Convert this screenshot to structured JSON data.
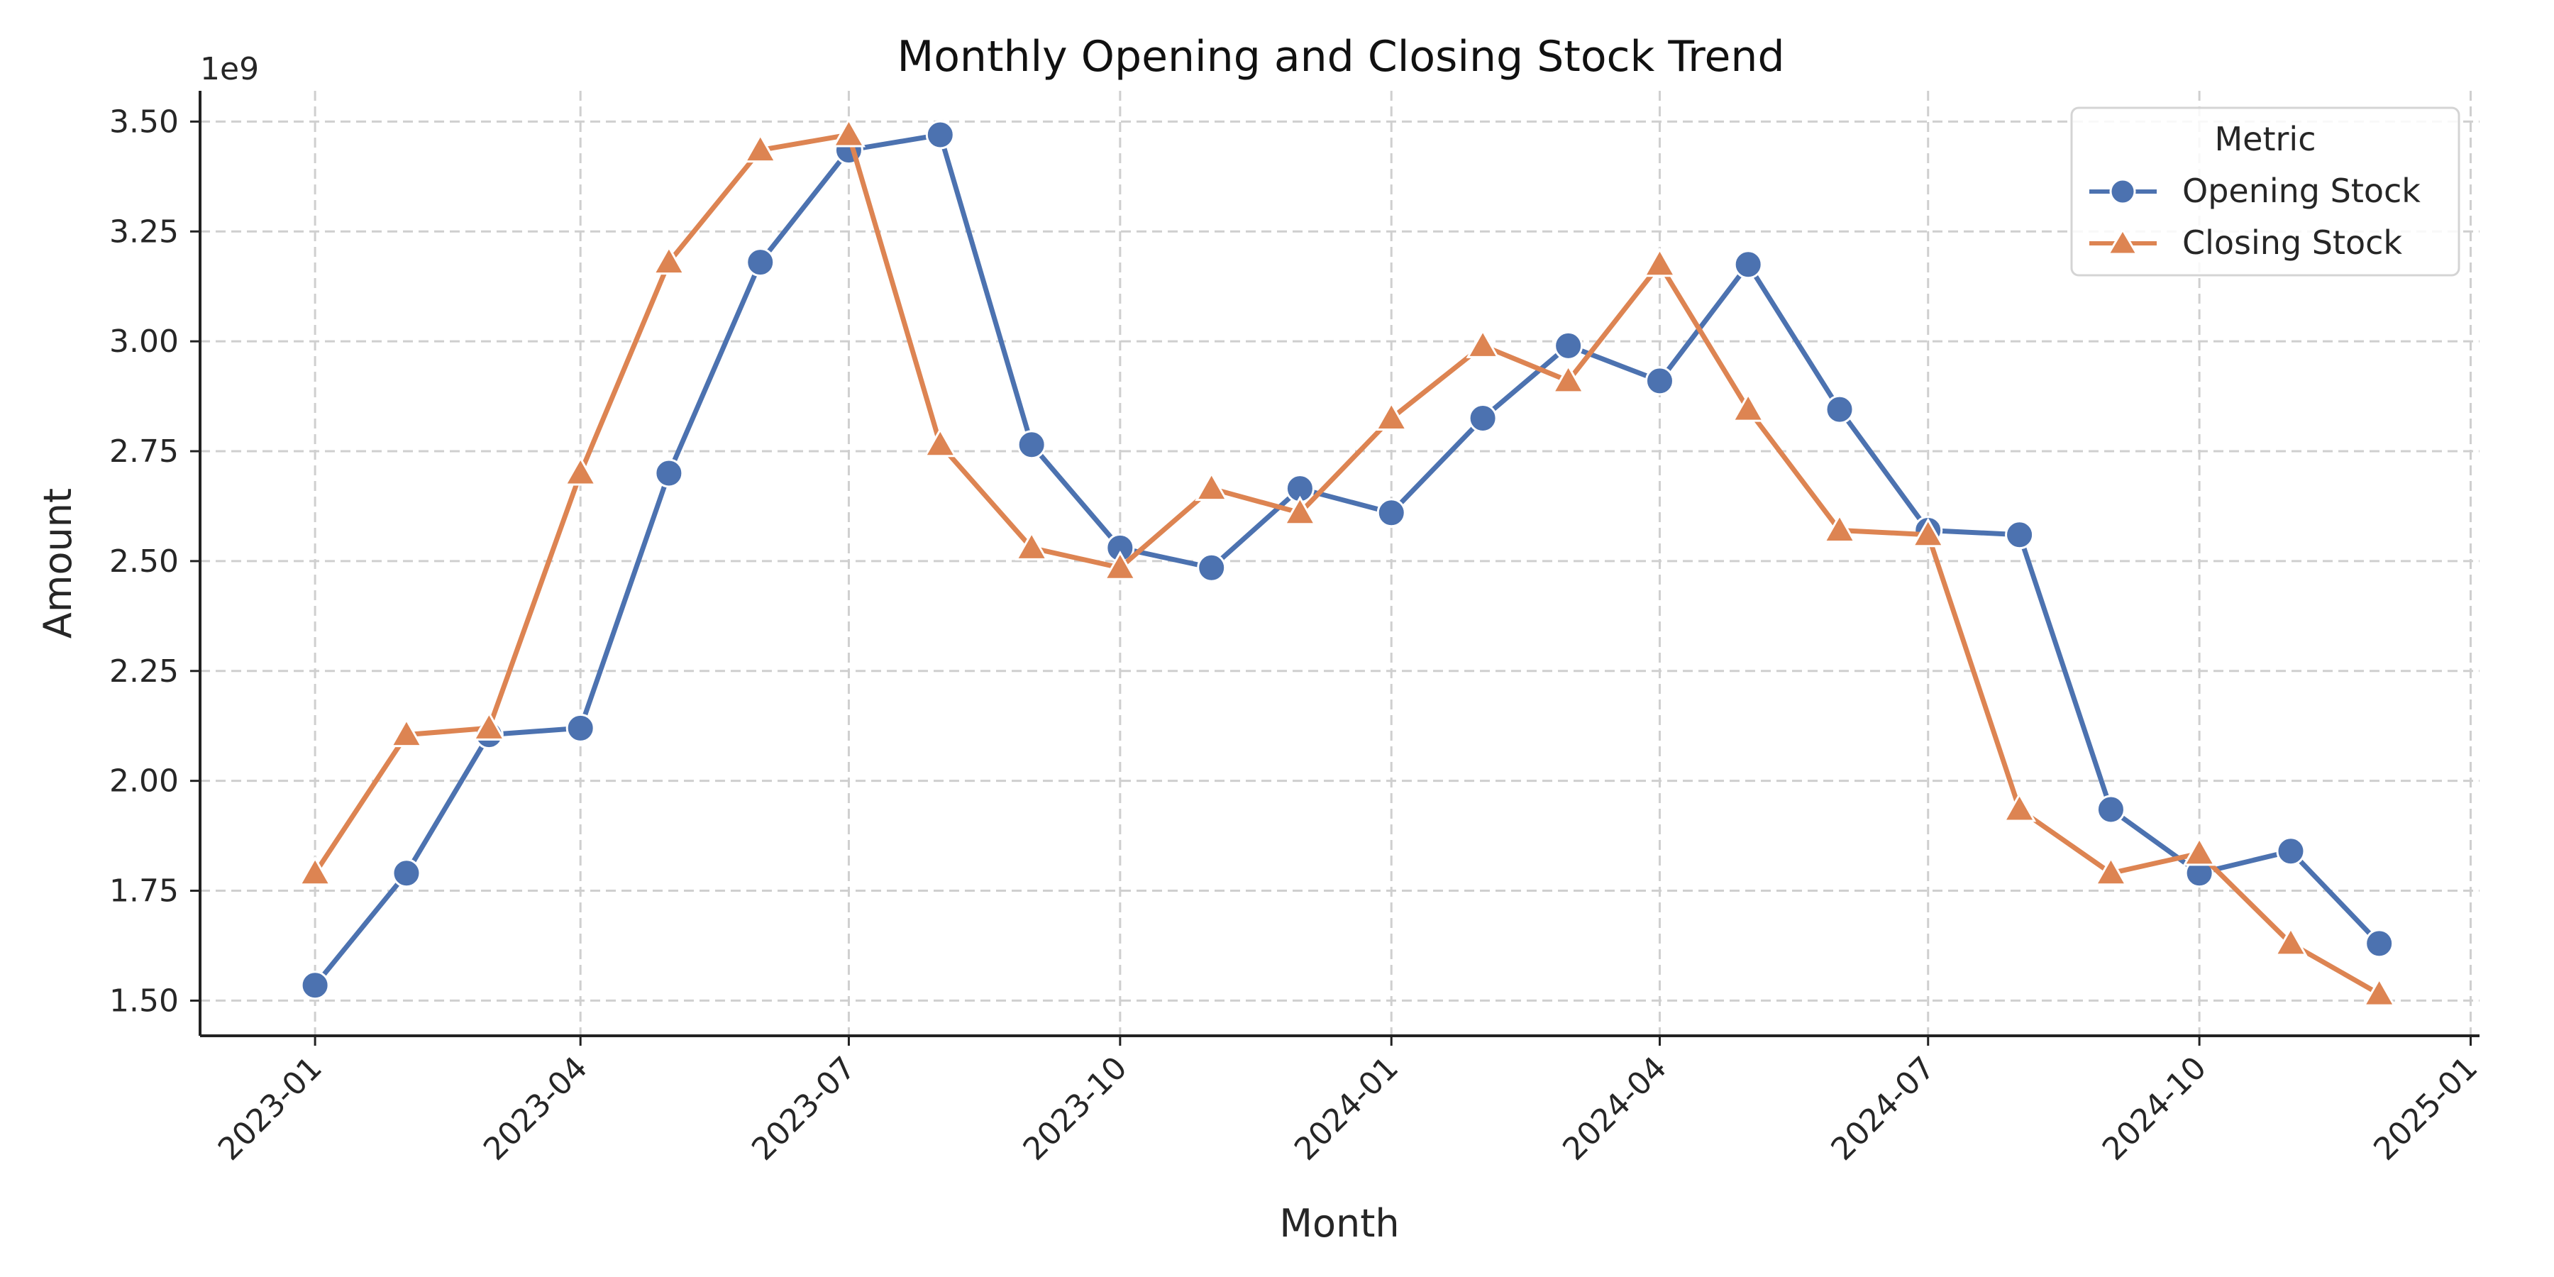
{
  "chart_data": {
    "type": "line",
    "title": "Monthly Opening and Closing Stock Trend",
    "xlabel": "Month",
    "ylabel": "Amount",
    "y_offset_label": "1e9",
    "x_ticks": [
      "2023-01",
      "2023-04",
      "2023-07",
      "2023-10",
      "2024-01",
      "2024-04",
      "2024-07",
      "2024-10",
      "2025-01"
    ],
    "y_ticks": [
      "1.50",
      "1.75",
      "2.00",
      "2.25",
      "2.50",
      "2.75",
      "3.00",
      "3.25",
      "3.50"
    ],
    "y_tick_values": [
      1.5,
      1.75,
      2.0,
      2.25,
      2.5,
      2.75,
      3.0,
      3.25,
      3.5
    ],
    "ylim": [
      1.42,
      3.57
    ],
    "xlim": [
      "2022-11-23",
      "2025-01-04"
    ],
    "grid": true,
    "legend_title": "Metric",
    "legend_position": "top-right",
    "x": [
      "2023-01",
      "2023-02",
      "2023-03",
      "2023-04",
      "2023-05",
      "2023-06",
      "2023-07",
      "2023-08",
      "2023-09",
      "2023-10",
      "2023-11",
      "2023-12",
      "2024-01",
      "2024-02",
      "2024-03",
      "2024-04",
      "2024-05",
      "2024-06",
      "2024-07",
      "2024-08",
      "2024-09",
      "2024-10",
      "2024-11",
      "2024-12"
    ],
    "series": [
      {
        "name": "Opening Stock",
        "color": "#4c72b0",
        "marker": "circle",
        "values": [
          1.535,
          1.79,
          2.105,
          2.12,
          2.7,
          3.18,
          3.435,
          3.47,
          2.765,
          2.53,
          2.485,
          2.665,
          2.61,
          2.825,
          2.99,
          2.91,
          3.175,
          2.845,
          2.57,
          2.56,
          1.935,
          1.79,
          1.84,
          1.63
        ]
      },
      {
        "name": "Closing Stock",
        "color": "#dd8452",
        "marker": "triangle",
        "values": [
          1.79,
          2.105,
          2.12,
          2.7,
          3.18,
          3.435,
          3.47,
          2.765,
          2.53,
          2.485,
          2.665,
          2.61,
          2.825,
          2.99,
          2.91,
          3.175,
          2.845,
          2.57,
          2.56,
          1.935,
          1.79,
          1.835,
          1.63,
          1.515
        ]
      }
    ]
  }
}
